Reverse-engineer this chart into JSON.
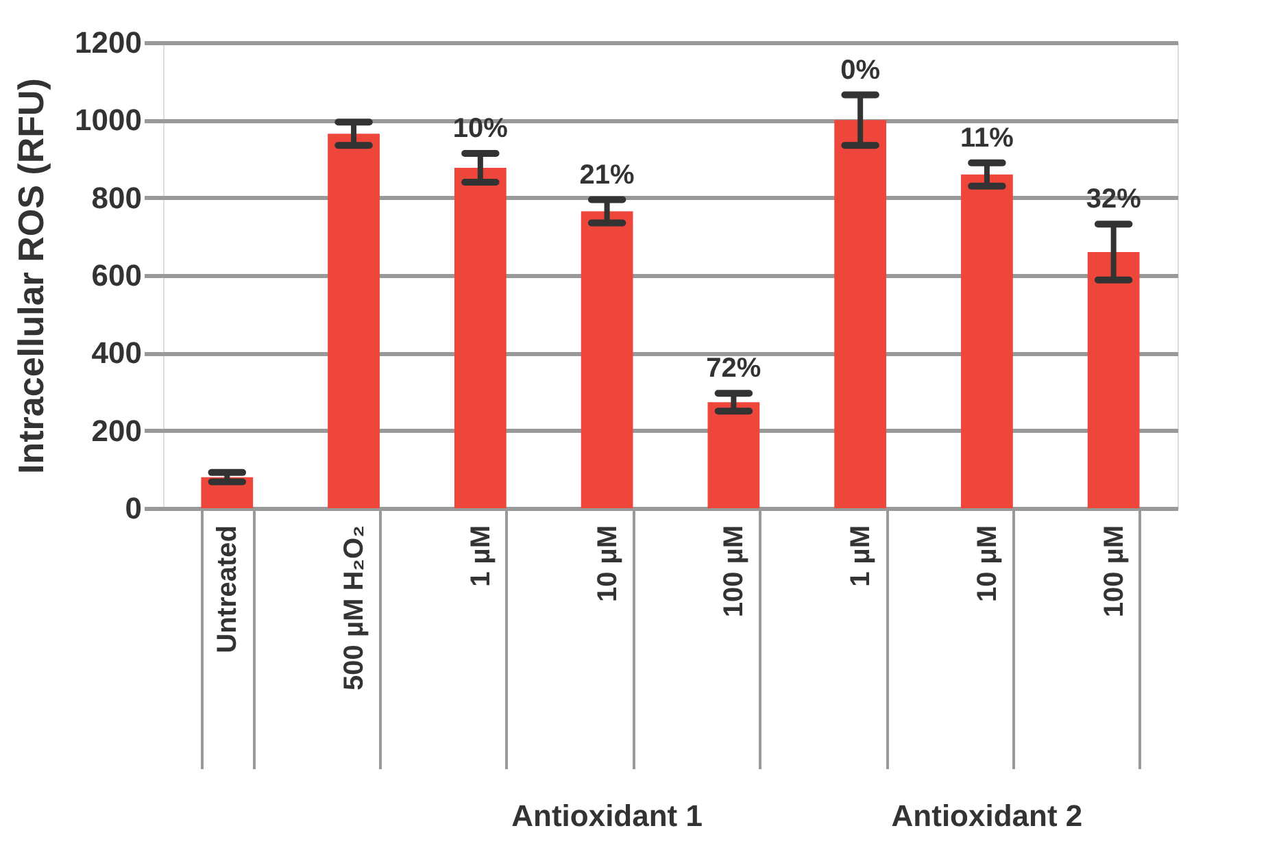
{
  "chart_data": {
    "type": "bar",
    "ylabel": "Intracellular ROS (RFU)",
    "categories": [
      "Untreated",
      "500 µM H₂O₂",
      "1 µM",
      "10 µM",
      "100 µM",
      "1 µM",
      "10 µM",
      "100 µM"
    ],
    "values": [
      80,
      965,
      877,
      765,
      273,
      1000,
      860,
      660
    ],
    "errors": [
      12,
      30,
      37,
      30,
      23,
      65,
      30,
      72
    ],
    "color": "#ef463c",
    "ylim": [
      0,
      1200
    ],
    "yticks": [
      0,
      200,
      400,
      600,
      800,
      1000,
      1200
    ],
    "grid": "y",
    "annotations": [
      "10%",
      "21%",
      "72%",
      "0%",
      "11%",
      "32%",
      "Antioxidant 1",
      "Antioxidant 2"
    ]
  }
}
